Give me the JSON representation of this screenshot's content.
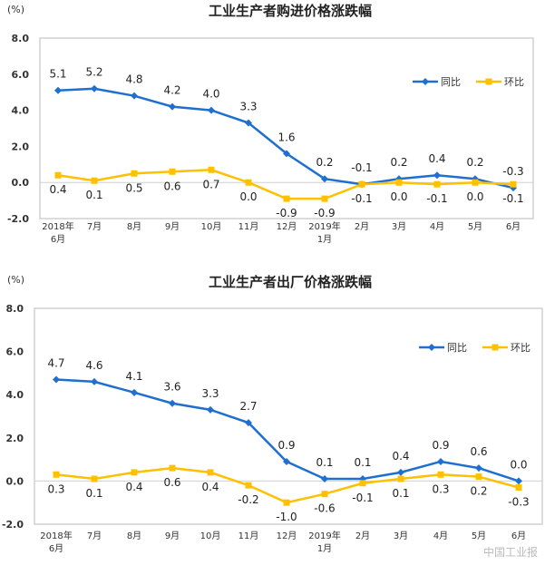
{
  "chart_data": [
    {
      "type": "line",
      "title": "工业生产者购进价格涨跌幅",
      "ylabel": "(%)",
      "ylim": [
        -2.0,
        8.0
      ],
      "yticks": [
        "8.0",
        "6.0",
        "4.0",
        "2.0",
        "0.0",
        "-2.0"
      ],
      "categories": [
        "2018年|6月",
        "7月",
        "8月",
        "9月",
        "10月",
        "11月",
        "12月",
        "2019年|1月",
        "2月",
        "3月",
        "4月",
        "5月",
        "6月"
      ],
      "legend_position": "top-right",
      "grid": false,
      "series": [
        {
          "name": "同比",
          "color": "#1f6fd1",
          "marker": "diamond",
          "values": [
            5.1,
            5.2,
            4.8,
            4.2,
            4.0,
            3.3,
            1.6,
            0.2,
            -0.1,
            0.2,
            0.4,
            0.2,
            -0.3
          ]
        },
        {
          "name": "环比",
          "color": "#ffc000",
          "marker": "square",
          "values": [
            0.4,
            0.1,
            0.5,
            0.6,
            0.7,
            0.0,
            -0.9,
            -0.9,
            -0.1,
            0.0,
            -0.1,
            0.0,
            -0.1
          ]
        }
      ]
    },
    {
      "type": "line",
      "title": "工业生产者出厂价格涨跌幅",
      "ylabel": "(%)",
      "ylim": [
        -2.0,
        8.0
      ],
      "yticks": [
        "8.0",
        "6.0",
        "4.0",
        "2.0",
        "0.0",
        "-2.0"
      ],
      "categories": [
        "2018年|6月",
        "7月",
        "8月",
        "9月",
        "10月",
        "11月",
        "12月",
        "2019年|1月",
        "2月",
        "3月",
        "4月",
        "5月",
        "6月"
      ],
      "legend_position": "top-right",
      "grid": false,
      "series": [
        {
          "name": "同比",
          "color": "#1f6fd1",
          "marker": "diamond",
          "values": [
            4.7,
            4.6,
            4.1,
            3.6,
            3.3,
            2.7,
            0.9,
            0.1,
            0.1,
            0.4,
            0.9,
            0.6,
            0.0
          ]
        },
        {
          "name": "环比",
          "color": "#ffc000",
          "marker": "square",
          "values": [
            0.3,
            0.1,
            0.4,
            0.6,
            0.4,
            -0.2,
            -1.0,
            -0.6,
            -0.1,
            0.1,
            0.3,
            0.2,
            -0.3
          ]
        }
      ]
    }
  ],
  "watermark": "中国工业报"
}
